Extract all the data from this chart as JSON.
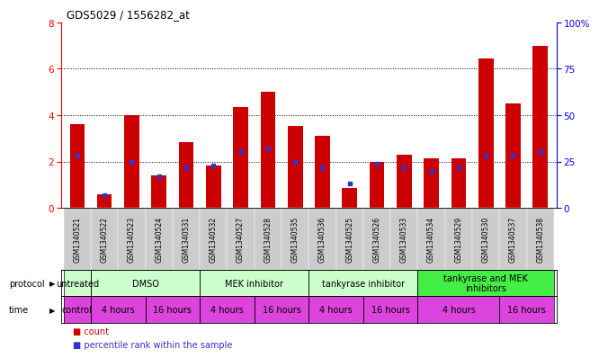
{
  "title": "GDS5029 / 1556282_at",
  "samples": [
    "GSM1340521",
    "GSM1340522",
    "GSM1340523",
    "GSM1340524",
    "GSM1340531",
    "GSM1340532",
    "GSM1340527",
    "GSM1340528",
    "GSM1340535",
    "GSM1340536",
    "GSM1340525",
    "GSM1340526",
    "GSM1340533",
    "GSM1340534",
    "GSM1340529",
    "GSM1340530",
    "GSM1340537",
    "GSM1340538"
  ],
  "count_values": [
    3.6,
    0.6,
    4.0,
    1.4,
    2.85,
    1.85,
    4.35,
    5.0,
    3.55,
    3.1,
    0.85,
    2.0,
    2.3,
    2.15,
    2.15,
    6.45,
    4.5,
    7.0
  ],
  "percentile_values": [
    28,
    7,
    25,
    17,
    22,
    23,
    30,
    32,
    25,
    22,
    13,
    24,
    22,
    20,
    22,
    28,
    28,
    30
  ],
  "ylim_left": [
    0,
    8
  ],
  "ylim_right": [
    0,
    100
  ],
  "yticks_left": [
    0,
    2,
    4,
    6,
    8
  ],
  "yticks_right": [
    0,
    25,
    50,
    75,
    100
  ],
  "ytick_right_labels": [
    "0",
    "25",
    "50",
    "75",
    "100%"
  ],
  "hgrid_values": [
    2,
    4,
    6
  ],
  "bar_color": "#cc0000",
  "dot_color": "#3333cc",
  "bar_width": 0.55,
  "protocol_groups": [
    {
      "label": "untreated",
      "start": 0,
      "end": 1,
      "color": "#ccffcc"
    },
    {
      "label": "DMSO",
      "start": 1,
      "end": 5,
      "color": "#ccffcc"
    },
    {
      "label": "MEK inhibitor",
      "start": 5,
      "end": 9,
      "color": "#ccffcc"
    },
    {
      "label": "tankyrase inhibitor",
      "start": 9,
      "end": 13,
      "color": "#ccffcc"
    },
    {
      "label": "tankyrase and MEK\ninhibitors",
      "start": 13,
      "end": 18,
      "color": "#44ee44"
    }
  ],
  "time_groups": [
    {
      "label": "control",
      "start": 0,
      "end": 1
    },
    {
      "label": "4 hours",
      "start": 1,
      "end": 3
    },
    {
      "label": "16 hours",
      "start": 3,
      "end": 5
    },
    {
      "label": "4 hours",
      "start": 5,
      "end": 7
    },
    {
      "label": "16 hours",
      "start": 7,
      "end": 9
    },
    {
      "label": "4 hours",
      "start": 9,
      "end": 11
    },
    {
      "label": "16 hours",
      "start": 11,
      "end": 13
    },
    {
      "label": "4 hours",
      "start": 13,
      "end": 16
    },
    {
      "label": "16 hours",
      "start": 16,
      "end": 18
    }
  ],
  "time_color": "#dd44dd",
  "ticklabel_bg": "#cccccc",
  "protocol_label": "protocol",
  "time_label": "time",
  "legend_count": "count",
  "legend_percentile": "percentile rank within the sample",
  "background_color": "#ffffff"
}
